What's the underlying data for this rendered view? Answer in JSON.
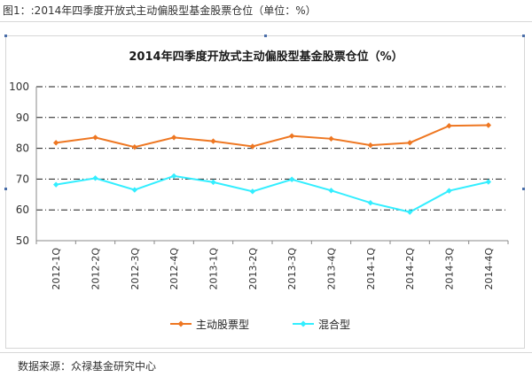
{
  "caption": "图1：:2014年四季度开放式主动偏股型基金股票仓位（单位：%）",
  "source": "数据来源：众禄基金研究中心",
  "chart_data": {
    "type": "line",
    "title": "2014年四季度开放式主动偏股型基金股票仓位（%）",
    "categories": [
      "2012-1Q",
      "2012-2Q",
      "2012-3Q",
      "2012-4Q",
      "2013-1Q",
      "2013-2Q",
      "2013-3Q",
      "2013-4Q",
      "2014-1Q",
      "2014-2Q",
      "2014-3Q",
      "2014-4Q"
    ],
    "series": [
      {
        "name": "主动股票型",
        "color": "#ee7722",
        "marker": "diamond",
        "values": [
          81.8,
          83.5,
          80.4,
          83.5,
          82.3,
          80.6,
          84.0,
          83.1,
          81.0,
          81.8,
          87.3,
          87.5
        ]
      },
      {
        "name": "混合型",
        "color": "#33eeff",
        "marker": "diamond",
        "values": [
          68.2,
          70.3,
          66.5,
          71.0,
          69.0,
          66.0,
          69.9,
          66.3,
          62.3,
          59.3,
          66.2,
          69.1
        ]
      }
    ],
    "ylim": [
      50,
      100
    ],
    "yticks": [
      50,
      60,
      70,
      80,
      90,
      100
    ],
    "xlabel": "",
    "ylabel": "",
    "grid": true,
    "legend_position": "bottom"
  }
}
